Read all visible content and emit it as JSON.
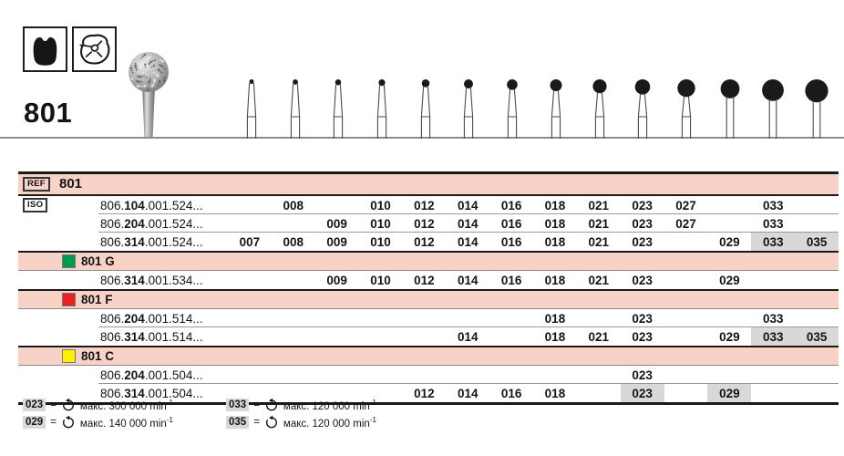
{
  "product": {
    "number": "801"
  },
  "indication_icons": [
    {
      "name": "tooth-crown-icon"
    },
    {
      "name": "tooth-occlusal-icon"
    }
  ],
  "size_columns": [
    "007",
    "008",
    "009",
    "010",
    "012",
    "014",
    "016",
    "018",
    "021",
    "023",
    "027",
    "029",
    "033",
    "035"
  ],
  "ref_row": {
    "badge": "REF",
    "number": "801"
  },
  "iso_badge": "ISO",
  "groups": [
    {
      "name": "",
      "color": "",
      "rows": [
        {
          "code_prefix": "806.",
          "code_bold": "104",
          "code_suffix": ".001.524...",
          "available": [
            "008",
            "010",
            "012",
            "014",
            "016",
            "018",
            "021",
            "023",
            "027",
            "033"
          ],
          "highlighted": []
        },
        {
          "code_prefix": "806.",
          "code_bold": "204",
          "code_suffix": ".001.524...",
          "available": [
            "009",
            "010",
            "012",
            "014",
            "016",
            "018",
            "021",
            "023",
            "027",
            "033"
          ],
          "highlighted": []
        },
        {
          "code_prefix": "806.",
          "code_bold": "314",
          "code_suffix": ".001.524...",
          "available": [
            "007",
            "008",
            "009",
            "010",
            "012",
            "014",
            "016",
            "018",
            "021",
            "023",
            "029",
            "033",
            "035"
          ],
          "highlighted": [
            "033",
            "035"
          ]
        }
      ]
    },
    {
      "name": "801 G",
      "color": "#009b4e",
      "rows": [
        {
          "code_prefix": "806.",
          "code_bold": "314",
          "code_suffix": ".001.534...",
          "available": [
            "009",
            "010",
            "012",
            "014",
            "016",
            "018",
            "021",
            "023",
            "029"
          ],
          "highlighted": []
        }
      ]
    },
    {
      "name": "801 F",
      "color": "#e8231f",
      "rows": [
        {
          "code_prefix": "806.",
          "code_bold": "204",
          "code_suffix": ".001.514...",
          "available": [
            "018",
            "023",
            "033"
          ],
          "highlighted": []
        },
        {
          "code_prefix": "806.",
          "code_bold": "314",
          "code_suffix": ".001.514...",
          "available": [
            "014",
            "018",
            "021",
            "023",
            "029",
            "033",
            "035"
          ],
          "highlighted": [
            "033",
            "035"
          ]
        }
      ]
    },
    {
      "name": "801 C",
      "color": "#fff100",
      "rows": [
        {
          "code_prefix": "806.",
          "code_bold": "204",
          "code_suffix": ".001.504...",
          "available": [
            "023"
          ],
          "highlighted": []
        },
        {
          "code_prefix": "806.",
          "code_bold": "314",
          "code_suffix": ".001.504...",
          "available": [
            "012",
            "014",
            "016",
            "018",
            "023",
            "029"
          ],
          "highlighted": [
            "023",
            "029"
          ]
        }
      ]
    }
  ],
  "speed_legend": {
    "left": [
      {
        "size": "023",
        "eq": "=",
        "text": "макс. 300 000 min",
        "sup": "-1"
      },
      {
        "size": "029",
        "eq": "=",
        "text": "макс. 140 000 min",
        "sup": "-1"
      }
    ],
    "right": [
      {
        "size": "033",
        "eq": "=",
        "text": "макс. 120 000 min",
        "sup": "-1"
      },
      {
        "size": "035",
        "eq": "=",
        "text": "макс. 120 000 min",
        "sup": "-1"
      }
    ]
  }
}
